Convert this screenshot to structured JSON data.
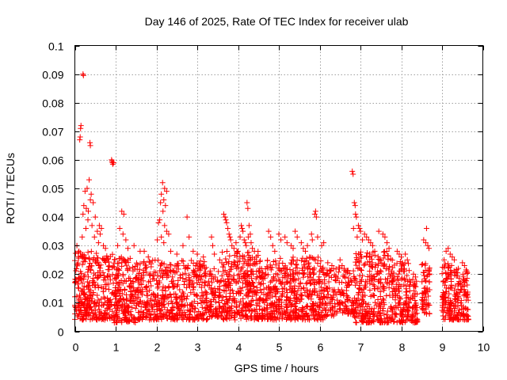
{
  "chart_data": {
    "type": "scatter",
    "title": "Day 146 of 2025, Rate Of TEC Index for receiver ulab",
    "xlabel": "GPS time / hours",
    "ylabel": "ROTI / TECUs",
    "xlim": [
      0,
      10
    ],
    "ylim": [
      0,
      0.1
    ],
    "x_ticks": [
      0,
      1,
      2,
      3,
      4,
      5,
      6,
      7,
      8,
      9,
      10
    ],
    "y_ticks": [
      0,
      0.01,
      0.02,
      0.03,
      0.04,
      0.05,
      0.06,
      0.07,
      0.08,
      0.09,
      0.1
    ],
    "x_tick_labels": [
      "0",
      "1",
      "2",
      "3",
      "4",
      "5",
      "6",
      "7",
      "8",
      "9",
      "10"
    ],
    "y_tick_labels": [
      "0",
      "0.01",
      "0.02",
      "0.03",
      "0.04",
      "0.05",
      "0.06",
      "0.07",
      "0.08",
      "0.09",
      "0.1"
    ],
    "grid": true,
    "marker": "+",
    "color": "#ff0000",
    "series": [
      {
        "name": "ROTI",
        "points": [
          [
            0.2,
            0.09
          ],
          [
            0.21,
            0.0895
          ],
          [
            0.15,
            0.072
          ],
          [
            0.14,
            0.071
          ],
          [
            0.13,
            0.068
          ],
          [
            0.12,
            0.067
          ],
          [
            0.37,
            0.066
          ],
          [
            0.38,
            0.065
          ],
          [
            0.9,
            0.06
          ],
          [
            0.91,
            0.0595
          ],
          [
            0.92,
            0.059
          ],
          [
            0.93,
            0.0585
          ],
          [
            0.95,
            0.059
          ],
          [
            0.35,
            0.053
          ],
          [
            0.3,
            0.05
          ],
          [
            0.25,
            0.049
          ],
          [
            0.4,
            0.048
          ],
          [
            0.22,
            0.044
          ],
          [
            0.28,
            0.043
          ],
          [
            0.45,
            0.045
          ],
          [
            0.33,
            0.042
          ],
          [
            0.5,
            0.04
          ],
          [
            0.2,
            0.041
          ],
          [
            0.38,
            0.046
          ],
          [
            0.32,
            0.039
          ],
          [
            0.27,
            0.036
          ],
          [
            0.42,
            0.037
          ],
          [
            0.6,
            0.037
          ],
          [
            0.65,
            0.036
          ],
          [
            0.55,
            0.035
          ],
          [
            0.62,
            0.034
          ],
          [
            0.18,
            0.033
          ],
          [
            0.48,
            0.033
          ],
          [
            0.05,
            0.03
          ],
          [
            0.1,
            0.028
          ],
          [
            0.7,
            0.03
          ],
          [
            0.58,
            0.031
          ],
          [
            0.75,
            0.029
          ],
          [
            1.15,
            0.042
          ],
          [
            1.2,
            0.041
          ],
          [
            1.1,
            0.036
          ],
          [
            1.18,
            0.034
          ],
          [
            1.25,
            0.032
          ],
          [
            1.05,
            0.03
          ],
          [
            1.3,
            0.029
          ],
          [
            1.45,
            0.03
          ],
          [
            1.6,
            0.028
          ],
          [
            1.7,
            0.028
          ],
          [
            1.8,
            0.026
          ],
          [
            2.15,
            0.052
          ],
          [
            2.2,
            0.05
          ],
          [
            2.25,
            0.049
          ],
          [
            2.12,
            0.048
          ],
          [
            2.18,
            0.046
          ],
          [
            2.22,
            0.044
          ],
          [
            2.1,
            0.045
          ],
          [
            2.16,
            0.042
          ],
          [
            2.08,
            0.039
          ],
          [
            2.2,
            0.037
          ],
          [
            2.05,
            0.038
          ],
          [
            2.25,
            0.035
          ],
          [
            2.3,
            0.034
          ],
          [
            2.02,
            0.032
          ],
          [
            2.12,
            0.033
          ],
          [
            2.18,
            0.031
          ],
          [
            2.35,
            0.028
          ],
          [
            2.5,
            0.027
          ],
          [
            2.75,
            0.04
          ],
          [
            2.8,
            0.033
          ],
          [
            2.65,
            0.03
          ],
          [
            2.9,
            0.028
          ],
          [
            3.0,
            0.027
          ],
          [
            3.15,
            0.026
          ],
          [
            3.35,
            0.033
          ],
          [
            3.38,
            0.03
          ],
          [
            3.42,
            0.027
          ],
          [
            3.55,
            0.025
          ],
          [
            3.65,
            0.041
          ],
          [
            3.68,
            0.04
          ],
          [
            3.7,
            0.039
          ],
          [
            3.72,
            0.038
          ],
          [
            3.75,
            0.036
          ],
          [
            3.78,
            0.034
          ],
          [
            3.8,
            0.033
          ],
          [
            3.82,
            0.032
          ],
          [
            3.85,
            0.03
          ],
          [
            3.9,
            0.029
          ],
          [
            3.95,
            0.031
          ],
          [
            4.0,
            0.028
          ],
          [
            4.08,
            0.037
          ],
          [
            4.1,
            0.036
          ],
          [
            4.12,
            0.035
          ],
          [
            4.05,
            0.033
          ],
          [
            4.15,
            0.032
          ],
          [
            4.18,
            0.031
          ],
          [
            4.22,
            0.045
          ],
          [
            4.24,
            0.043
          ],
          [
            4.27,
            0.037
          ],
          [
            4.3,
            0.034
          ],
          [
            4.25,
            0.033
          ],
          [
            4.32,
            0.031
          ],
          [
            4.2,
            0.03
          ],
          [
            4.35,
            0.029
          ],
          [
            4.4,
            0.028
          ],
          [
            4.45,
            0.026
          ],
          [
            4.75,
            0.035
          ],
          [
            4.8,
            0.033
          ],
          [
            4.85,
            0.03
          ],
          [
            4.9,
            0.028
          ],
          [
            5.0,
            0.034
          ],
          [
            5.05,
            0.032
          ],
          [
            5.15,
            0.033
          ],
          [
            5.2,
            0.031
          ],
          [
            5.3,
            0.03
          ],
          [
            5.35,
            0.029
          ],
          [
            5.4,
            0.035
          ],
          [
            5.45,
            0.033
          ],
          [
            5.55,
            0.031
          ],
          [
            5.6,
            0.029
          ],
          [
            5.65,
            0.028
          ],
          [
            5.7,
            0.03
          ],
          [
            5.8,
            0.034
          ],
          [
            5.82,
            0.032
          ],
          [
            5.9,
            0.042
          ],
          [
            5.88,
            0.041
          ],
          [
            5.92,
            0.04
          ],
          [
            5.95,
            0.033
          ],
          [
            6.05,
            0.03
          ],
          [
            6.1,
            0.031
          ],
          [
            6.2,
            0.024
          ],
          [
            6.3,
            0.023
          ],
          [
            6.5,
            0.025
          ],
          [
            6.55,
            0.023
          ],
          [
            6.6,
            0.022
          ],
          [
            6.8,
            0.056
          ],
          [
            6.82,
            0.055
          ],
          [
            6.85,
            0.045
          ],
          [
            6.87,
            0.044
          ],
          [
            6.88,
            0.041
          ],
          [
            6.9,
            0.04
          ],
          [
            6.83,
            0.036
          ],
          [
            6.95,
            0.037
          ],
          [
            6.98,
            0.036
          ],
          [
            7.0,
            0.035
          ],
          [
            6.92,
            0.033
          ],
          [
            7.05,
            0.032
          ],
          [
            7.1,
            0.034
          ],
          [
            7.15,
            0.033
          ],
          [
            7.2,
            0.032
          ],
          [
            7.25,
            0.031
          ],
          [
            7.3,
            0.03
          ],
          [
            7.35,
            0.028
          ],
          [
            7.45,
            0.035
          ],
          [
            7.55,
            0.034
          ],
          [
            7.6,
            0.033
          ],
          [
            7.65,
            0.031
          ],
          [
            7.7,
            0.029
          ],
          [
            7.9,
            0.028
          ],
          [
            7.95,
            0.027
          ],
          [
            8.0,
            0.026
          ],
          [
            8.1,
            0.027
          ],
          [
            8.15,
            0.025
          ],
          [
            8.3,
            0.02
          ],
          [
            8.35,
            0.019
          ],
          [
            8.55,
            0.032
          ],
          [
            8.6,
            0.031
          ],
          [
            8.62,
            0.036
          ],
          [
            8.65,
            0.03
          ],
          [
            8.68,
            0.029
          ],
          [
            9.05,
            0.025
          ],
          [
            9.1,
            0.028
          ],
          [
            9.15,
            0.029
          ],
          [
            9.2,
            0.027
          ],
          [
            9.25,
            0.026
          ],
          [
            9.3,
            0.025
          ],
          [
            9.4,
            0.022
          ],
          [
            9.5,
            0.024
          ],
          [
            9.55,
            0.023
          ],
          [
            9.6,
            0.021
          ]
        ],
        "dense_clusters": [
          {
            "x_range": [
              0.0,
              0.95
            ],
            "y_range": [
              0.004,
              0.028
            ],
            "count": 320
          },
          {
            "x_range": [
              0.95,
              1.5
            ],
            "y_range": [
              0.003,
              0.026
            ],
            "count": 200
          },
          {
            "x_range": [
              1.5,
              2.05
            ],
            "y_range": [
              0.004,
              0.025
            ],
            "count": 170
          },
          {
            "x_range": [
              2.05,
              2.6
            ],
            "y_range": [
              0.004,
              0.024
            ],
            "count": 160
          },
          {
            "x_range": [
              2.6,
              3.3
            ],
            "y_range": [
              0.004,
              0.025
            ],
            "count": 190
          },
          {
            "x_range": [
              3.3,
              3.6
            ],
            "y_range": [
              0.005,
              0.022
            ],
            "count": 80
          },
          {
            "x_range": [
              3.6,
              4.55
            ],
            "y_range": [
              0.004,
              0.028
            ],
            "count": 320
          },
          {
            "x_range": [
              4.55,
              5.0
            ],
            "y_range": [
              0.004,
              0.025
            ],
            "count": 140
          },
          {
            "x_range": [
              5.0,
              5.55
            ],
            "y_range": [
              0.004,
              0.026
            ],
            "count": 170
          },
          {
            "x_range": [
              5.55,
              6.1
            ],
            "y_range": [
              0.004,
              0.026
            ],
            "count": 170
          },
          {
            "x_range": [
              6.1,
              6.4
            ],
            "y_range": [
              0.005,
              0.022
            ],
            "count": 70
          },
          {
            "x_range": [
              6.4,
              6.85
            ],
            "y_range": [
              0.006,
              0.023
            ],
            "count": 90
          },
          {
            "x_range": [
              6.85,
              7.75
            ],
            "y_range": [
              0.003,
              0.028
            ],
            "count": 280
          },
          {
            "x_range": [
              7.75,
              8.2
            ],
            "y_range": [
              0.003,
              0.025
            ],
            "count": 140
          },
          {
            "x_range": [
              8.2,
              8.4
            ],
            "y_range": [
              0.003,
              0.019
            ],
            "count": 60
          },
          {
            "x_range": [
              8.5,
              8.7
            ],
            "y_range": [
              0.006,
              0.024
            ],
            "count": 60
          },
          {
            "x_range": [
              9.0,
              9.3
            ],
            "y_range": [
              0.004,
              0.024
            ],
            "count": 110
          },
          {
            "x_range": [
              9.3,
              9.65
            ],
            "y_range": [
              0.004,
              0.022
            ],
            "count": 110
          }
        ]
      }
    ]
  }
}
